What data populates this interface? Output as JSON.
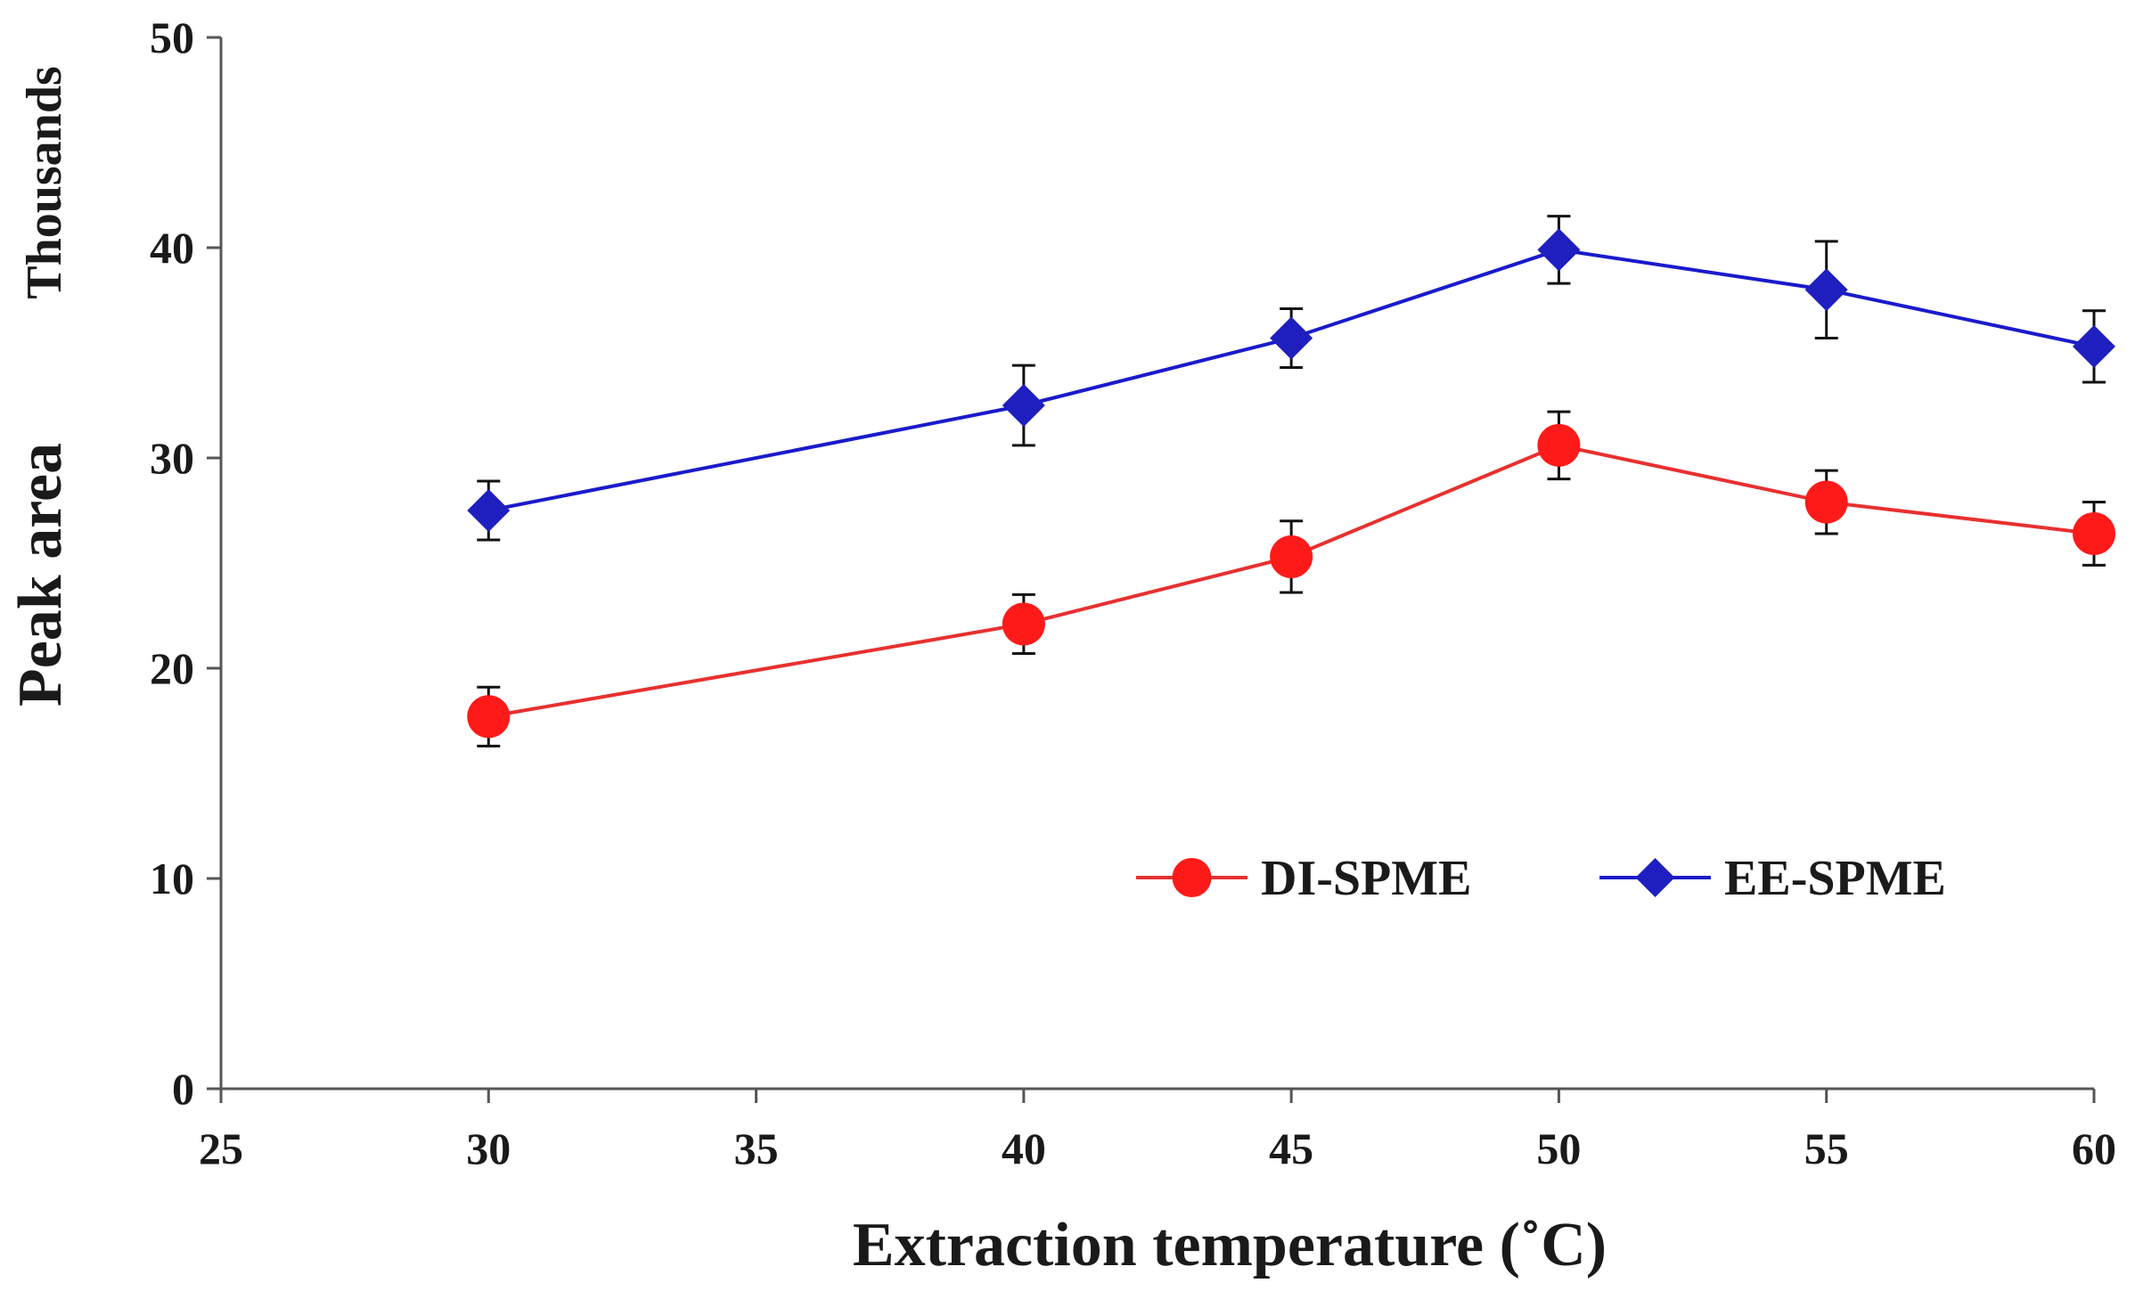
{
  "chart_data": {
    "type": "line",
    "xlabel": "Extraction temperature (˚C)",
    "ylabel": "Peak area",
    "y_units_label": "Thousands",
    "xlim": [
      25,
      60
    ],
    "ylim": [
      0,
      50
    ],
    "x_ticks": [
      25,
      30,
      35,
      40,
      45,
      50,
      55,
      60
    ],
    "y_ticks": [
      0,
      10,
      20,
      30,
      40,
      50
    ],
    "grid": false,
    "legend_placement": "center-right",
    "series": [
      {
        "name": "DI-SPME",
        "color": "#ff1a1a",
        "line_color": "#e83030",
        "marker": "circle",
        "x": [
          30,
          40,
          45,
          50,
          55,
          60
        ],
        "y": [
          17.7,
          22.1,
          25.3,
          30.6,
          27.9,
          26.4
        ],
        "error": [
          1.4,
          1.4,
          1.7,
          1.6,
          1.5,
          1.5
        ]
      },
      {
        "name": "EE-SPME",
        "color": "#1f1fbf",
        "line_color": "#1a1acc",
        "marker": "diamond",
        "x": [
          30,
          40,
          45,
          50,
          55,
          60
        ],
        "y": [
          27.5,
          32.5,
          35.7,
          39.9,
          38.0,
          35.3
        ],
        "error": [
          1.4,
          1.9,
          1.4,
          1.6,
          2.3,
          1.7
        ]
      }
    ]
  }
}
